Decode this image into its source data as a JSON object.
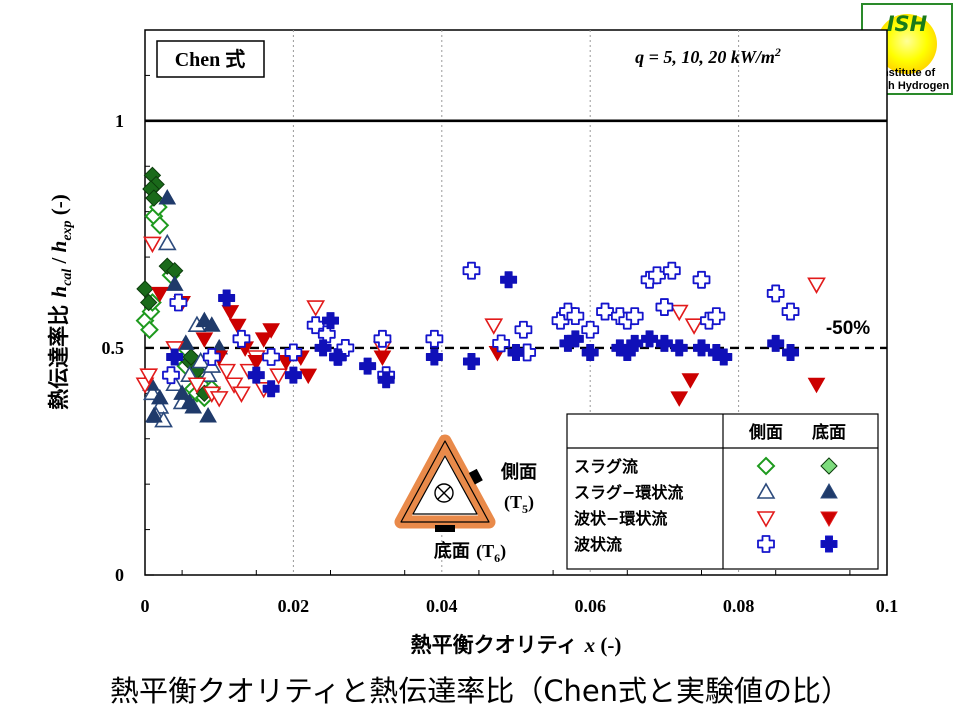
{
  "chart_data": {
    "type": "scatter",
    "title": "Chen 式",
    "subtitle": "q = 5, 10, 20 kW/m2",
    "xlabel_text": "熱平衡クオリティ",
    "xlabel_var": "x",
    "xlabel_unit": "(-)",
    "ylabel_text": "熱伝達率比",
    "ylabel_var": "hcal / hexp",
    "ylabel_unit": "(-)",
    "xlim": [
      0,
      0.1
    ],
    "ylim": [
      0,
      1.2
    ],
    "xticks": [
      "0",
      "0.02",
      "0.04",
      "0.06",
      "0.08",
      "0.1"
    ],
    "yticks": [
      "0",
      "0.5",
      "1"
    ],
    "grid_x": true,
    "reference_lines": [
      {
        "y": 1.0,
        "style": "solid"
      },
      {
        "y": 0.5,
        "style": "dashed",
        "label": "-50%"
      }
    ],
    "legend": {
      "placement": "bottom-right",
      "columns": [
        "側面",
        "底面"
      ],
      "rows": [
        {
          "label": "スラグ流",
          "marker": "diamond",
          "color": "#1e9a1e",
          "fill": "#7ddc7d"
        },
        {
          "label": "スラグ−環状流",
          "marker": "triangle-up",
          "color": "#2c4a7c",
          "fill": "#1f3a6a"
        },
        {
          "label": "波状−環状流",
          "marker": "triangle-down",
          "color": "#e21b1b",
          "fill": "#cc0000"
        },
        {
          "label": "波状流",
          "marker": "plus",
          "color": "#1414cc",
          "fill": "#1010b8"
        }
      ]
    },
    "series": [
      {
        "name": "スラグ流 側面",
        "marker": "diamond",
        "filled": false,
        "color": "#1e9a1e",
        "x": [
          0.0,
          0.0008,
          0.0012,
          0.0018,
          0.002,
          0.001,
          0.0006,
          0.0035,
          0.0045,
          0.0055,
          0.0065,
          0.007,
          0.0075,
          0.008,
          0.009
        ],
        "y": [
          0.56,
          0.58,
          0.79,
          0.81,
          0.77,
          0.6,
          0.54,
          0.66,
          0.48,
          0.46,
          0.41,
          0.4,
          0.42,
          0.39,
          0.41
        ]
      },
      {
        "name": "スラグ流 底面",
        "marker": "diamond",
        "filled": true,
        "color": "#1a6a1a",
        "x": [
          0.0,
          0.0005,
          0.001,
          0.0015,
          0.0008,
          0.0012,
          0.003,
          0.004,
          0.006,
          0.0062,
          0.007,
          0.008
        ],
        "y": [
          0.63,
          0.6,
          0.88,
          0.86,
          0.85,
          0.83,
          0.68,
          0.67,
          0.47,
          0.48,
          0.45,
          0.4
        ]
      },
      {
        "name": "スラグ−環状流 側面",
        "marker": "triangle-up",
        "filled": false,
        "color": "#2c4a7c",
        "x": [
          0.001,
          0.002,
          0.003,
          0.004,
          0.005,
          0.0015,
          0.006,
          0.0075,
          0.0085,
          0.009,
          0.007,
          0.0025
        ],
        "y": [
          0.4,
          0.37,
          0.73,
          0.42,
          0.38,
          0.35,
          0.44,
          0.47,
          0.44,
          0.46,
          0.55,
          0.34
        ]
      },
      {
        "name": "スラグ−環状流 底面",
        "marker": "triangle-up",
        "filled": true,
        "color": "#1f3a6a",
        "x": [
          0.0008,
          0.0012,
          0.003,
          0.004,
          0.005,
          0.006,
          0.0065,
          0.008,
          0.009,
          0.01,
          0.002,
          0.0055,
          0.0085
        ],
        "y": [
          0.42,
          0.35,
          0.83,
          0.64,
          0.4,
          0.38,
          0.37,
          0.56,
          0.55,
          0.5,
          0.39,
          0.51,
          0.35
        ]
      },
      {
        "name": "波状−環状流 側面",
        "marker": "triangle-down",
        "filled": false,
        "color": "#e21b1b",
        "x": [
          0.0,
          0.0005,
          0.001,
          0.004,
          0.007,
          0.009,
          0.01,
          0.011,
          0.012,
          0.013,
          0.014,
          0.015,
          0.016,
          0.018,
          0.023,
          0.032,
          0.047,
          0.072,
          0.074,
          0.0905
        ],
        "y": [
          0.42,
          0.44,
          0.73,
          0.5,
          0.42,
          0.4,
          0.39,
          0.45,
          0.42,
          0.4,
          0.45,
          0.48,
          0.41,
          0.44,
          0.59,
          0.5,
          0.55,
          0.58,
          0.55,
          0.64
        ]
      },
      {
        "name": "波状−環状流 底面",
        "marker": "triangle-down",
        "filled": true,
        "color": "#cc0000",
        "x": [
          0.002,
          0.005,
          0.008,
          0.01,
          0.0115,
          0.0125,
          0.0135,
          0.015,
          0.016,
          0.017,
          0.019,
          0.021,
          0.022,
          0.032,
          0.0475,
          0.072,
          0.0735,
          0.0905
        ],
        "y": [
          0.62,
          0.6,
          0.52,
          0.48,
          0.58,
          0.55,
          0.5,
          0.47,
          0.52,
          0.54,
          0.47,
          0.48,
          0.44,
          0.48,
          0.49,
          0.39,
          0.43,
          0.42
        ]
      },
      {
        "name": "波状流 側面",
        "marker": "plus",
        "filled": false,
        "color": "#1414cc",
        "x": [
          0.0035,
          0.0045,
          0.009,
          0.013,
          0.017,
          0.02,
          0.023,
          0.0245,
          0.026,
          0.027,
          0.032,
          0.0325,
          0.039,
          0.044,
          0.048,
          0.051,
          0.0515,
          0.056,
          0.057,
          0.058,
          0.06,
          0.062,
          0.064,
          0.065,
          0.066,
          0.068,
          0.069,
          0.07,
          0.071,
          0.075,
          0.076,
          0.077,
          0.085,
          0.087
        ],
        "y": [
          0.44,
          0.6,
          0.48,
          0.52,
          0.48,
          0.49,
          0.55,
          0.53,
          0.48,
          0.5,
          0.52,
          0.44,
          0.52,
          0.67,
          0.51,
          0.54,
          0.49,
          0.56,
          0.58,
          0.57,
          0.54,
          0.58,
          0.57,
          0.56,
          0.57,
          0.65,
          0.66,
          0.59,
          0.67,
          0.65,
          0.56,
          0.57,
          0.62,
          0.58
        ]
      },
      {
        "name": "波状流 底面",
        "marker": "plus",
        "filled": true,
        "color": "#1010b8",
        "x": [
          0.004,
          0.011,
          0.015,
          0.017,
          0.02,
          0.024,
          0.025,
          0.026,
          0.03,
          0.0325,
          0.039,
          0.044,
          0.049,
          0.05,
          0.057,
          0.058,
          0.06,
          0.064,
          0.065,
          0.066,
          0.068,
          0.07,
          0.072,
          0.075,
          0.077,
          0.078,
          0.085,
          0.087
        ],
        "y": [
          0.48,
          0.61,
          0.44,
          0.41,
          0.44,
          0.5,
          0.56,
          0.48,
          0.46,
          0.43,
          0.48,
          0.47,
          0.65,
          0.49,
          0.51,
          0.52,
          0.49,
          0.5,
          0.49,
          0.51,
          0.52,
          0.51,
          0.5,
          0.5,
          0.49,
          0.48,
          0.51,
          0.49
        ]
      }
    ]
  },
  "diagram": {
    "side_label": "側面",
    "side_sensor": "(T5)",
    "bottom_label": "底面 (T6)"
  },
  "logo": {
    "abbr": "ISH",
    "line1": "Institute of",
    "line2": "Slush Hydrogen"
  },
  "caption": "熱平衡クオリティと熱伝達率比（Chen式と実験値の比）"
}
